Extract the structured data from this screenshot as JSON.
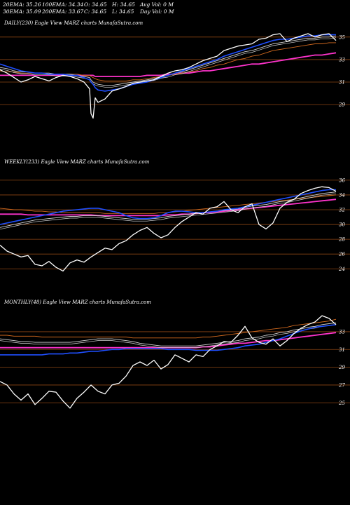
{
  "header": {
    "ema20": "20EMA: 35.26",
    "ema100": "100EMA: 34.34",
    "open": "O: 34.65",
    "high": "H: 34.65",
    "avgvol": "Avg Vol: 0  M",
    "ema30": "30EMA: 35.09",
    "ema200": "200EMA: 33.67",
    "close": "C: 34.65",
    "low": "L: 34.65",
    "dayvol": "Day Vol: 0  M"
  },
  "colors": {
    "background": "#000000",
    "price": "#ffffff",
    "ema_blue": "#1f4fff",
    "ema_magenta": "#ff33cc",
    "ema_orange": "#d2691e",
    "ema_gray": "#d3d3d3",
    "hline": "#8b4513"
  },
  "chart_data": [
    {
      "type": "line",
      "title": "DAILY(230) Eagle  View  MARZ charts MunafaSutra.com",
      "yticks": [
        "35",
        "33",
        "31",
        "29"
      ],
      "ylim": [
        27.2,
        35.8
      ],
      "x": [
        0,
        10,
        20,
        30,
        40,
        50,
        60,
        70,
        80,
        90,
        100,
        110,
        120,
        128,
        130,
        133,
        136,
        140,
        150,
        160,
        170,
        180,
        190,
        200,
        210,
        220,
        230,
        240,
        250,
        260,
        270,
        280,
        290,
        300,
        310,
        320,
        330,
        340,
        350,
        360,
        370,
        380,
        390,
        400,
        410,
        420,
        430,
        440,
        450,
        460,
        470,
        480
      ],
      "series": [
        {
          "role": "price",
          "values": [
            32.1,
            31.8,
            31.4,
            31.0,
            31.2,
            31.5,
            31.3,
            31.1,
            31.4,
            31.6,
            31.5,
            31.3,
            31.0,
            30.4,
            28.2,
            27.8,
            29.6,
            29.2,
            29.5,
            30.2,
            30.4,
            30.6,
            30.9,
            31.0,
            31.1,
            31.2,
            31.5,
            31.8,
            32.0,
            32.1,
            32.3,
            32.6,
            32.9,
            33.1,
            33.3,
            33.8,
            34.0,
            34.2,
            34.3,
            34.4,
            34.8,
            34.9,
            35.2,
            35.3,
            34.6,
            34.9,
            35.1,
            35.3,
            35.0,
            35.2,
            35.3,
            34.7
          ]
        },
        {
          "role": "ema-blue",
          "values": [
            32.6,
            32.4,
            32.2,
            32.0,
            31.9,
            31.8,
            31.8,
            31.7,
            31.7,
            31.7,
            31.6,
            31.6,
            31.4,
            31.2,
            31.0,
            30.8,
            30.5,
            30.3,
            30.2,
            30.3,
            30.4,
            30.6,
            30.8,
            30.9,
            31.0,
            31.2,
            31.4,
            31.6,
            31.8,
            32.0,
            32.2,
            32.4,
            32.6,
            32.8,
            33.0,
            33.3,
            33.5,
            33.7,
            33.9,
            34.1,
            34.3,
            34.5,
            34.7,
            34.8,
            34.8,
            34.9,
            35.0,
            35.1,
            35.1,
            35.2,
            35.2,
            35.2
          ]
        },
        {
          "role": "ema-gray",
          "values": [
            32.3,
            32.2,
            32.0,
            31.9,
            31.9,
            31.8,
            31.8,
            31.8,
            31.7,
            31.7,
            31.7,
            31.6,
            31.5,
            31.4,
            31.2,
            31.0,
            30.9,
            30.8,
            30.7,
            30.7,
            30.8,
            30.9,
            31.0,
            31.1,
            31.2,
            31.3,
            31.5,
            31.6,
            31.8,
            31.9,
            32.1,
            32.3,
            32.5,
            32.7,
            32.9,
            33.1,
            33.3,
            33.5,
            33.7,
            33.8,
            34.0,
            34.2,
            34.4,
            34.5,
            34.6,
            34.7,
            34.8,
            34.9,
            34.9,
            35.0,
            35.0,
            35.1
          ]
        },
        {
          "role": "ema-orange",
          "values": [
            32.0,
            31.9,
            31.9,
            31.8,
            31.8,
            31.8,
            31.8,
            31.7,
            31.7,
            31.7,
            31.7,
            31.7,
            31.6,
            31.6,
            31.5,
            31.4,
            31.3,
            31.2,
            31.1,
            31.1,
            31.1,
            31.1,
            31.2,
            31.2,
            31.3,
            31.4,
            31.5,
            31.6,
            31.7,
            31.8,
            31.9,
            32.0,
            32.2,
            32.3,
            32.5,
            32.6,
            32.8,
            33.0,
            33.1,
            33.3,
            33.4,
            33.6,
            33.8,
            33.9,
            34.0,
            34.1,
            34.2,
            34.3,
            34.4,
            34.4,
            34.5,
            34.5
          ]
        },
        {
          "role": "ema-magenta",
          "values": [
            31.6,
            31.6,
            31.6,
            31.6,
            31.6,
            31.6,
            31.6,
            31.6,
            31.6,
            31.6,
            31.6,
            31.6,
            31.6,
            31.6,
            31.6,
            31.6,
            31.5,
            31.5,
            31.5,
            31.5,
            31.5,
            31.5,
            31.5,
            31.5,
            31.6,
            31.6,
            31.6,
            31.7,
            31.7,
            31.8,
            31.8,
            31.9,
            32.0,
            32.0,
            32.1,
            32.2,
            32.3,
            32.4,
            32.5,
            32.6,
            32.6,
            32.7,
            32.8,
            32.9,
            33.0,
            33.1,
            33.2,
            33.3,
            33.4,
            33.4,
            33.5,
            33.6
          ]
        }
      ]
    },
    {
      "type": "line",
      "title": "WEEKLY(233) Eagle  View  MARZ charts MunafaSutra.com",
      "yticks": [
        "36",
        "34",
        "32",
        "30",
        "28",
        "26",
        "24"
      ],
      "ylim": [
        22.6,
        37.6
      ],
      "x": [
        0,
        10,
        20,
        30,
        40,
        50,
        60,
        70,
        80,
        90,
        100,
        110,
        120,
        130,
        140,
        150,
        160,
        170,
        180,
        190,
        200,
        210,
        220,
        230,
        240,
        250,
        260,
        270,
        280,
        290,
        300,
        310,
        320,
        330,
        340,
        350,
        360,
        370,
        380,
        390,
        400,
        410,
        420,
        430,
        440,
        450,
        460,
        470,
        480
      ],
      "series": [
        {
          "role": "price",
          "values": [
            27.2,
            26.4,
            26.0,
            25.6,
            25.8,
            24.6,
            24.4,
            25.0,
            24.2,
            23.7,
            24.8,
            25.2,
            24.9,
            25.6,
            26.2,
            26.8,
            26.6,
            27.4,
            27.8,
            28.6,
            29.2,
            29.6,
            28.8,
            28.2,
            28.6,
            29.6,
            30.4,
            31.0,
            31.6,
            31.4,
            32.2,
            32.4,
            33.1,
            32.0,
            31.6,
            32.4,
            32.8,
            30.0,
            29.4,
            30.2,
            32.2,
            33.0,
            33.4,
            34.2,
            34.6,
            34.9,
            35.1,
            35.0,
            34.5
          ]
        },
        {
          "role": "ema-blue",
          "values": [
            30.0,
            30.2,
            30.4,
            30.6,
            30.8,
            31.0,
            31.2,
            31.4,
            31.6,
            31.8,
            31.9,
            32.0,
            32.1,
            32.2,
            32.2,
            32.0,
            31.8,
            31.6,
            31.2,
            30.9,
            30.8,
            30.8,
            30.9,
            31.2,
            31.6,
            31.8,
            31.8,
            31.7,
            31.6,
            31.6,
            31.7,
            31.8,
            32.0,
            32.1,
            32.2,
            32.4,
            32.6,
            32.8,
            33.0,
            33.2,
            33.4,
            33.6,
            33.8,
            34.0,
            34.2,
            34.4,
            34.6,
            34.7,
            34.7
          ]
        },
        {
          "role": "ema-gray",
          "values": [
            29.6,
            29.8,
            30.0,
            30.2,
            30.4,
            30.6,
            30.7,
            30.8,
            30.9,
            31.0,
            31.1,
            31.1,
            31.2,
            31.2,
            31.2,
            31.1,
            31.0,
            30.9,
            30.8,
            30.7,
            30.7,
            30.7,
            30.8,
            30.9,
            31.1,
            31.2,
            31.3,
            31.4,
            31.5,
            31.6,
            31.7,
            31.8,
            31.9,
            32.0,
            32.1,
            32.3,
            32.5,
            32.6,
            32.7,
            32.9,
            33.1,
            33.2,
            33.4,
            33.6,
            33.8,
            34.0,
            34.2,
            34.3,
            34.4
          ]
        },
        {
          "role": "ema-orange",
          "values": [
            32.2,
            32.1,
            32.0,
            32.0,
            31.9,
            31.8,
            31.8,
            31.7,
            31.7,
            31.6,
            31.6,
            31.6,
            31.6,
            31.6,
            31.6,
            31.5,
            31.5,
            31.5,
            31.5,
            31.5,
            31.5,
            31.5,
            31.5,
            31.6,
            31.6,
            31.7,
            31.8,
            31.9,
            32.0,
            32.1,
            32.2,
            32.3,
            32.4,
            32.5,
            32.6,
            32.7,
            32.8,
            32.9,
            33.0,
            33.1,
            33.2,
            33.3,
            33.4,
            33.5,
            33.6,
            33.7,
            33.8,
            33.9,
            34.0
          ]
        },
        {
          "role": "ema-magenta",
          "values": [
            31.4,
            31.4,
            31.4,
            31.4,
            31.3,
            31.3,
            31.3,
            31.3,
            31.3,
            31.3,
            31.3,
            31.3,
            31.3,
            31.3,
            31.2,
            31.2,
            31.2,
            31.2,
            31.2,
            31.2,
            31.2,
            31.2,
            31.2,
            31.2,
            31.3,
            31.3,
            31.4,
            31.4,
            31.5,
            31.6,
            31.6,
            31.7,
            31.8,
            31.9,
            32.0,
            32.1,
            32.2,
            32.3,
            32.4,
            32.5,
            32.6,
            32.7,
            32.8,
            32.9,
            33.0,
            33.1,
            33.2,
            33.3,
            33.4
          ]
        }
      ]
    },
    {
      "type": "line",
      "title": "MONTHLY(48) Eagle  View  MARZ charts MunafaSutra.com",
      "yticks": [
        "33",
        "31",
        "29",
        "27",
        "25"
      ],
      "ylim": [
        23.6,
        35.6
      ],
      "x": [
        0,
        10,
        20,
        30,
        40,
        50,
        60,
        70,
        80,
        90,
        100,
        110,
        120,
        130,
        140,
        150,
        160,
        170,
        180,
        190,
        200,
        210,
        220,
        230,
        240,
        250,
        260,
        270,
        280,
        290,
        300,
        310,
        320,
        330,
        340,
        350,
        360,
        370,
        380,
        390,
        400,
        410,
        420,
        430,
        440,
        450,
        460,
        470,
        480
      ],
      "series": [
        {
          "role": "price",
          "values": [
            27.4,
            27.0,
            26.0,
            25.3,
            26.0,
            24.8,
            25.5,
            26.3,
            26.2,
            25.2,
            24.4,
            25.5,
            26.2,
            27.0,
            26.3,
            26.0,
            27.0,
            27.2,
            28.0,
            29.2,
            29.6,
            29.2,
            29.8,
            28.8,
            29.3,
            30.4,
            30.0,
            29.6,
            30.4,
            30.2,
            31.0,
            31.4,
            31.9,
            31.8,
            32.6,
            33.6,
            32.3,
            31.8,
            31.6,
            32.2,
            31.4,
            32.0,
            32.8,
            33.4,
            33.8,
            34.1,
            34.8,
            34.5,
            33.8
          ]
        },
        {
          "role": "ema-blue",
          "values": [
            30.4,
            30.4,
            30.4,
            30.4,
            30.4,
            30.4,
            30.4,
            30.5,
            30.5,
            30.5,
            30.6,
            30.6,
            30.7,
            30.8,
            30.8,
            30.9,
            31.0,
            31.0,
            31.1,
            31.1,
            31.1,
            31.1,
            31.1,
            31.1,
            31.0,
            31.0,
            31.0,
            31.0,
            30.9,
            30.9,
            30.9,
            30.9,
            31.0,
            31.1,
            31.2,
            31.4,
            31.5,
            31.6,
            31.8,
            32.0,
            32.2,
            32.5,
            32.8,
            33.1,
            33.3,
            33.5,
            33.6,
            33.7,
            33.8
          ]
        },
        {
          "role": "ema-gray",
          "values": [
            32.2,
            32.1,
            32.0,
            31.9,
            31.9,
            31.8,
            31.8,
            31.8,
            31.8,
            31.8,
            31.8,
            31.9,
            32.0,
            32.1,
            32.2,
            32.2,
            32.2,
            32.1,
            32.0,
            31.9,
            31.7,
            31.6,
            31.5,
            31.4,
            31.4,
            31.4,
            31.4,
            31.4,
            31.4,
            31.5,
            31.6,
            31.7,
            31.8,
            31.9,
            32.0,
            32.2,
            32.3,
            32.4,
            32.6,
            32.7,
            32.9,
            33.0,
            33.2,
            33.3,
            33.5,
            33.6,
            33.8,
            33.9,
            34.0
          ]
        },
        {
          "role": "ema-orange",
          "values": [
            32.6,
            32.6,
            32.5,
            32.5,
            32.5,
            32.5,
            32.4,
            32.4,
            32.4,
            32.4,
            32.4,
            32.4,
            32.4,
            32.4,
            32.4,
            32.4,
            32.4,
            32.4,
            32.4,
            32.3,
            32.3,
            32.3,
            32.3,
            32.3,
            32.3,
            32.3,
            32.3,
            32.3,
            32.3,
            32.4,
            32.4,
            32.5,
            32.6,
            32.7,
            32.8,
            32.9,
            33.0,
            33.1,
            33.2,
            33.3,
            33.4,
            33.5,
            33.7,
            33.8,
            33.9,
            34.0,
            34.1,
            34.2,
            34.4
          ]
        },
        {
          "role": "ema-magenta",
          "values": [
            31.2,
            31.2,
            31.2,
            31.2,
            31.2,
            31.2,
            31.2,
            31.2,
            31.2,
            31.2,
            31.2,
            31.2,
            31.2,
            31.2,
            31.2,
            31.2,
            31.2,
            31.2,
            31.2,
            31.2,
            31.2,
            31.2,
            31.2,
            31.2,
            31.2,
            31.2,
            31.2,
            31.2,
            31.2,
            31.3,
            31.3,
            31.4,
            31.5,
            31.6,
            31.7,
            31.7,
            31.8,
            31.9,
            32.0,
            32.0,
            32.1,
            32.2,
            32.3,
            32.4,
            32.5,
            32.6,
            32.7,
            32.8,
            32.9
          ]
        }
      ]
    }
  ]
}
